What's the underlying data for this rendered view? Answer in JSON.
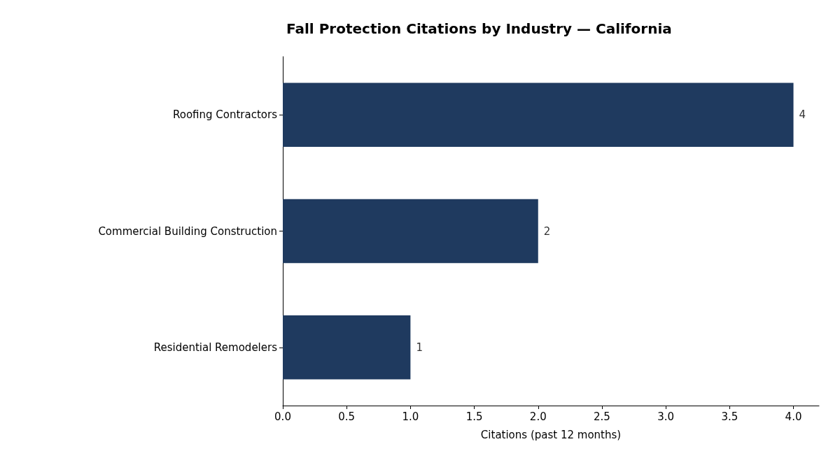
{
  "chart_data": {
    "type": "bar",
    "orientation": "horizontal",
    "title": "Fall Protection Citations by Industry — California",
    "xlabel": "Citations (past 12 months)",
    "categories": [
      "Roofing Contractors",
      "Commercial Building Construction",
      "Residential Remodelers"
    ],
    "values": [
      4,
      2,
      1
    ],
    "color": "#1f3a5f",
    "data_labels": true,
    "xlim": [
      0,
      4.2
    ],
    "xticks": [
      {
        "value": 0,
        "label": "0.0"
      },
      {
        "value": 0.5,
        "label": "0.5"
      },
      {
        "value": 1,
        "label": "1.0"
      },
      {
        "value": 1.5,
        "label": "1.5"
      },
      {
        "value": 2,
        "label": "2.0"
      },
      {
        "value": 2.5,
        "label": "2.5"
      },
      {
        "value": 3,
        "label": "3.0"
      },
      {
        "value": 3.5,
        "label": "3.5"
      },
      {
        "value": 4,
        "label": "4.0"
      }
    ],
    "grid": false
  }
}
